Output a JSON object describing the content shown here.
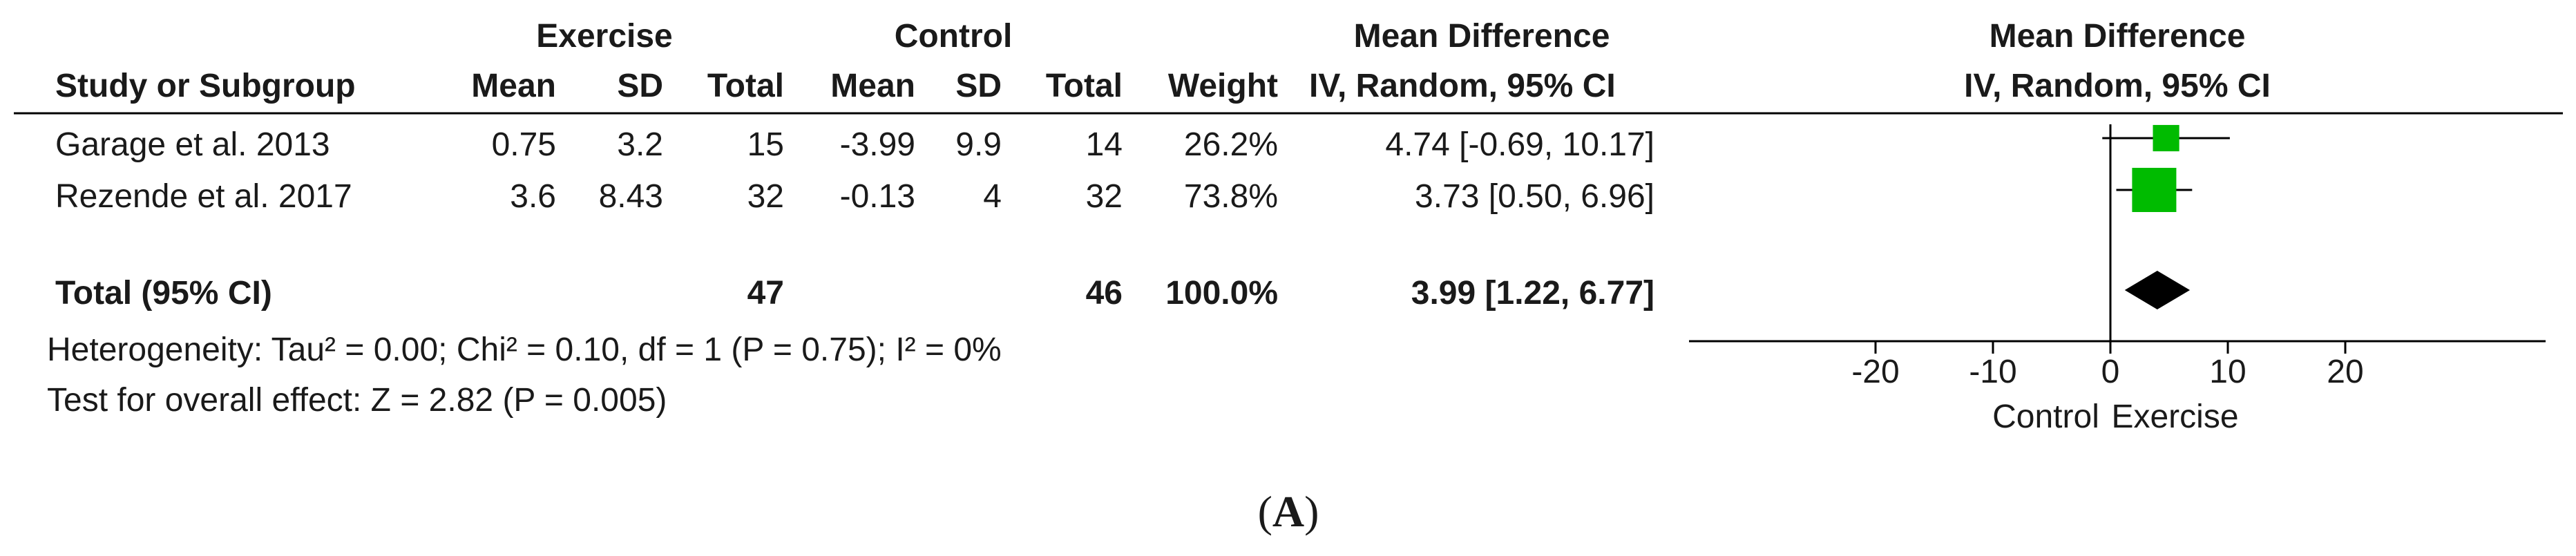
{
  "table": {
    "group_headers": {
      "exercise": "Exercise",
      "control": "Control",
      "md": "Mean Difference"
    },
    "columns": {
      "study": "Study or Subgroup",
      "ex_mean": "Mean",
      "ex_sd": "SD",
      "ex_total": "Total",
      "ct_mean": "Mean",
      "ct_sd": "SD",
      "ct_total": "Total",
      "weight": "Weight",
      "ci": "IV, Random, 95% CI"
    },
    "rows": [
      {
        "study": "Garage et al. 2013",
        "ex_mean": "0.75",
        "ex_sd": "3.2",
        "ex_total": "15",
        "ct_mean": "-3.99",
        "ct_sd": "9.9",
        "ct_total": "14",
        "weight": "26.2%",
        "ci": "4.74 [-0.69, 10.17]"
      },
      {
        "study": "Rezende et al. 2017",
        "ex_mean": "3.6",
        "ex_sd": "8.43",
        "ex_total": "32",
        "ct_mean": "-0.13",
        "ct_sd": "4",
        "ct_total": "32",
        "weight": "73.8%",
        "ci": "3.73 [0.50, 6.96]"
      }
    ],
    "total": {
      "label": "Total (95% CI)",
      "ex_total": "47",
      "ct_total": "46",
      "weight": "100.0%",
      "ci": "3.99 [1.22, 6.77]"
    },
    "heterogeneity": "Heterogeneity: Tau² = 0.00; Chi² = 0.10, df = 1 (P = 0.75); I² = 0%",
    "overall_effect": "Test for overall effect: Z = 2.82 (P = 0.005)"
  },
  "plot_header": {
    "line1": "Mean Difference",
    "line2": "IV, Random, 95% CI"
  },
  "caption": "(A)",
  "colors": {
    "study_marker": "#00bb00",
    "diamond": "#000000",
    "line": "#000000"
  },
  "chart_data": {
    "type": "forest",
    "xlim": [
      -30,
      30
    ],
    "ticks": [
      -20,
      -10,
      0,
      10,
      20
    ],
    "tick_labels": [
      "-20",
      "-10",
      "0",
      "10",
      "20"
    ],
    "xlabel_left": "Control",
    "xlabel_right": "Exercise",
    "studies": [
      {
        "name": "Garage et al. 2013",
        "md": 4.74,
        "lower": -0.69,
        "upper": 10.17,
        "weight": 26.2
      },
      {
        "name": "Rezende et al. 2017",
        "md": 3.73,
        "lower": 0.5,
        "upper": 6.96,
        "weight": 73.8
      }
    ],
    "pooled": {
      "md": 3.99,
      "lower": 1.22,
      "upper": 6.77
    }
  }
}
